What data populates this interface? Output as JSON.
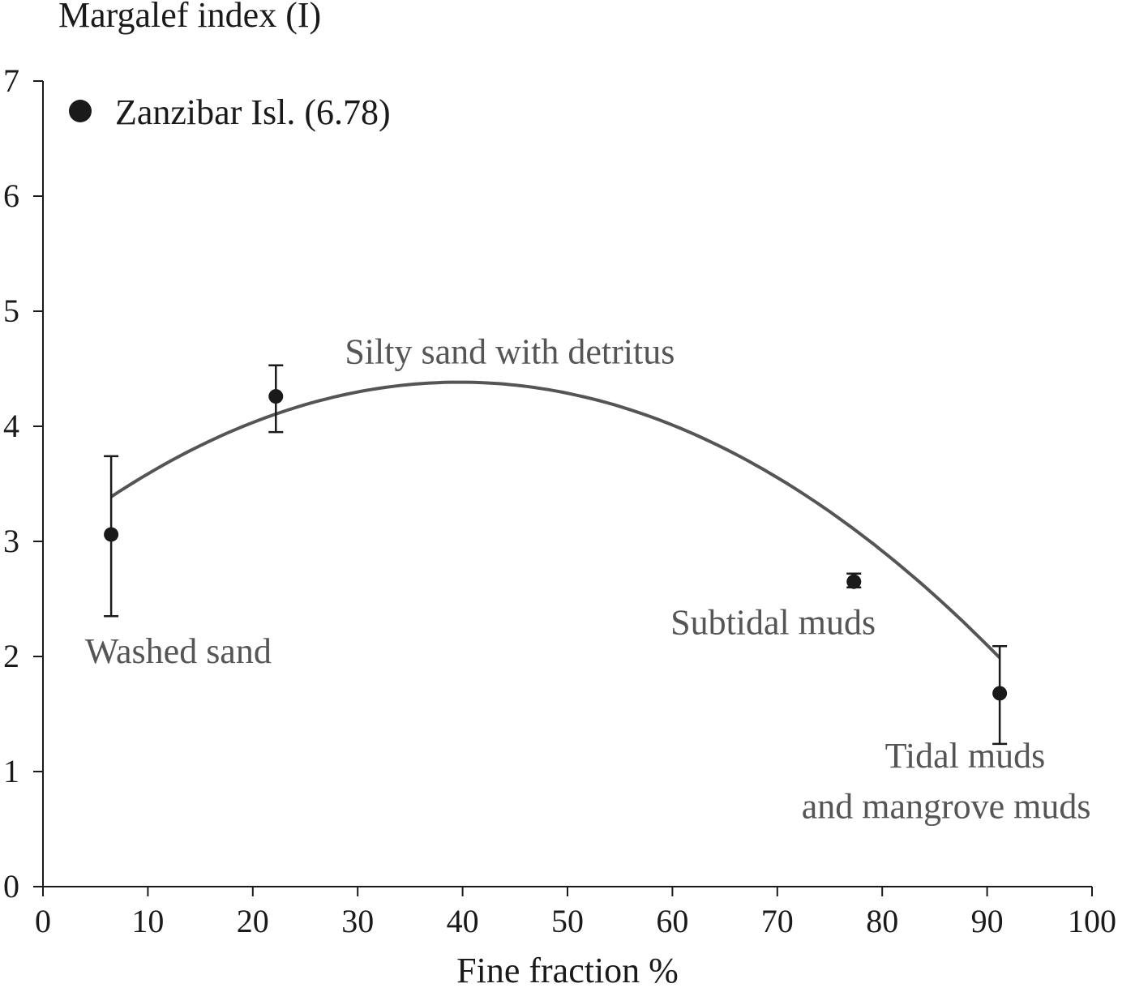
{
  "chart_data": {
    "type": "scatter",
    "title": "",
    "xlabel": "Fine fraction %",
    "ylabel": "Margalef index (I)",
    "xlim": [
      0,
      100
    ],
    "ylim": [
      0,
      7
    ],
    "x_ticks": [
      0,
      10,
      20,
      30,
      40,
      50,
      60,
      70,
      80,
      90,
      100
    ],
    "y_ticks": [
      0,
      1,
      2,
      3,
      4,
      5,
      6,
      7
    ],
    "grid": false,
    "legend": {
      "position": "top-left",
      "entries": [
        {
          "label": "Zanzibar Isl. (6.78)",
          "marker": "filled-circle"
        }
      ]
    },
    "series": [
      {
        "x": [
          6.5,
          22.2,
          77.3,
          91.2
        ],
        "y": [
          3.06,
          4.26,
          2.65,
          1.68
        ],
        "error_low": [
          2.35,
          3.95,
          2.6,
          1.24
        ],
        "error_high": [
          3.74,
          4.53,
          2.72,
          2.09
        ],
        "color": "#1a1a1a"
      }
    ],
    "fit_curve": {
      "type": "quadratic",
      "x_range": [
        6.5,
        91.2
      ],
      "coefficients": {
        "a": -0.000903,
        "b": 0.0717,
        "c": 2.96
      },
      "color": "#555555"
    },
    "annotations": [
      {
        "text": "Washed sand",
        "x": 12.9,
        "y": 2.05
      },
      {
        "text": "Silty sand with detritus",
        "x": 44.5,
        "y": 4.65
      },
      {
        "text": "Subtidal muds",
        "x": 69.6,
        "y": 2.3
      },
      {
        "text": "Tidal muds",
        "x": 87.9,
        "y": 1.14
      },
      {
        "text": "and mangrove muds",
        "x": 86.1,
        "y": 0.7
      }
    ]
  }
}
